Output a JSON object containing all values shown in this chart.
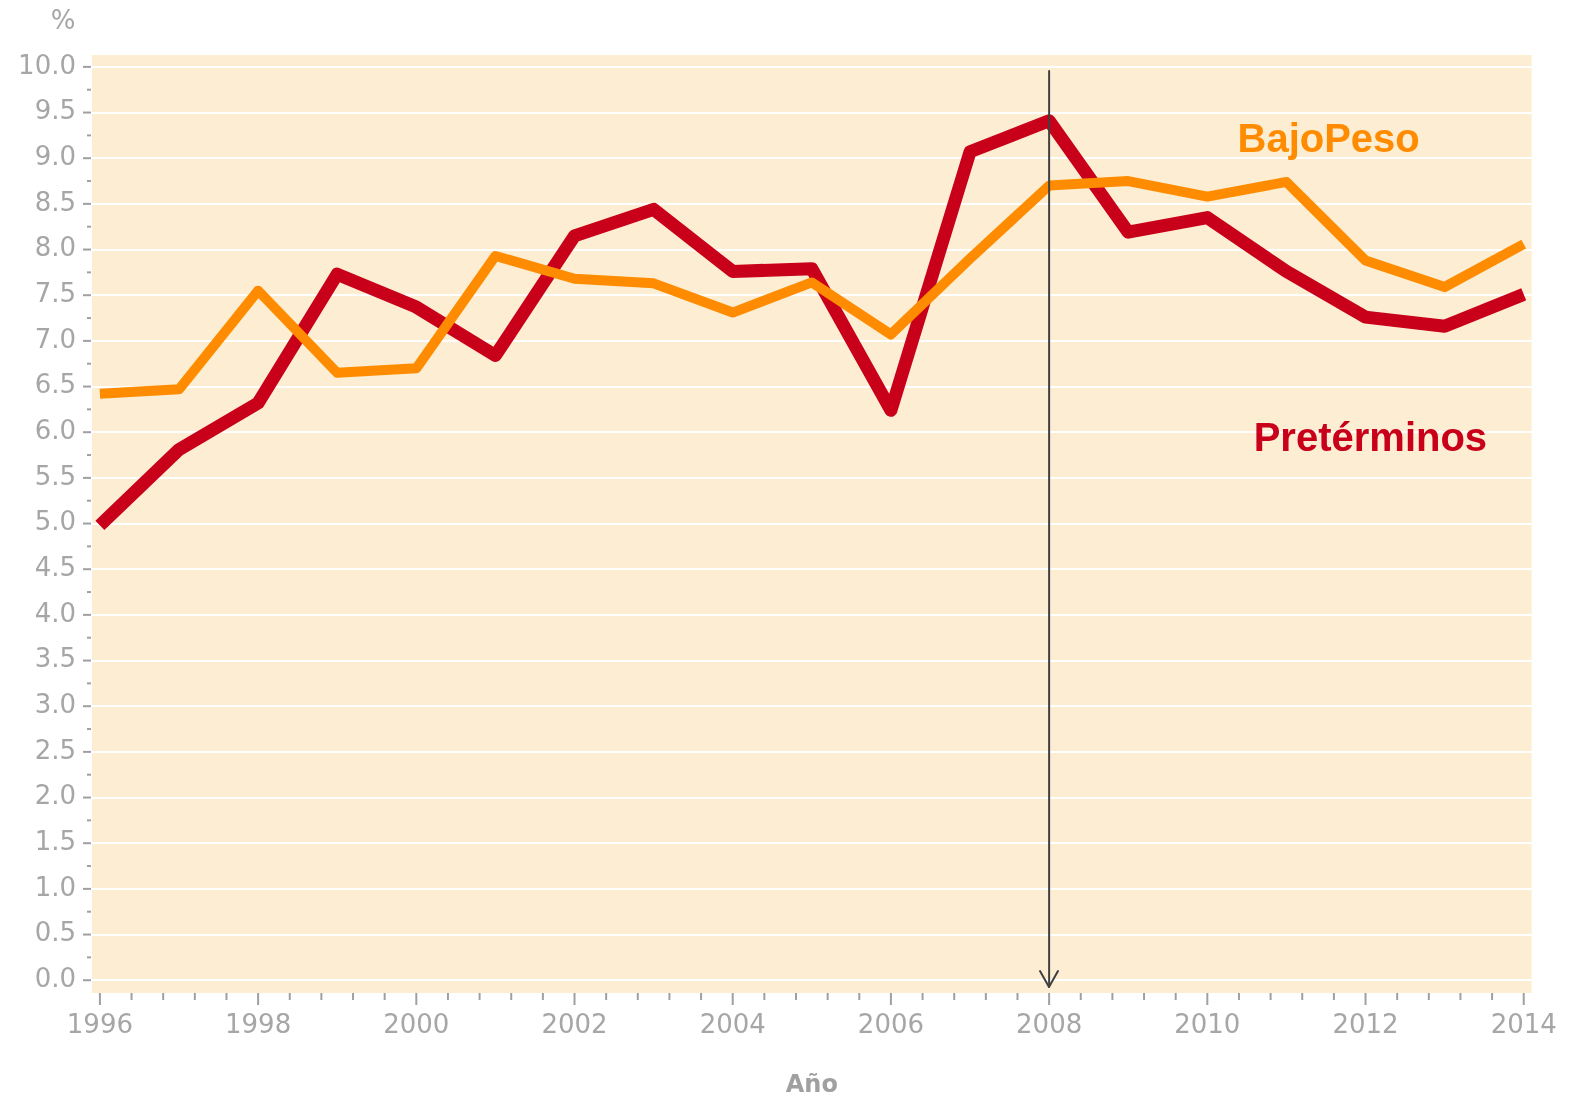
{
  "chart_data": {
    "type": "line",
    "xlabel": "Año",
    "ylabel": "%",
    "x": [
      1996,
      1997,
      1998,
      1999,
      2000,
      2001,
      2002,
      2003,
      2004,
      2005,
      2006,
      2007,
      2008,
      2009,
      2010,
      2011,
      2012,
      2013,
      2014
    ],
    "series": [
      {
        "name": "BajoPeso",
        "color": "#ff8c00",
        "values": [
          6.42,
          6.47,
          7.55,
          6.65,
          6.7,
          7.93,
          7.68,
          7.63,
          7.31,
          7.64,
          7.07,
          7.9,
          8.7,
          8.75,
          8.58,
          8.74,
          7.88,
          7.59,
          8.06
        ]
      },
      {
        "name": "Pretérminos",
        "color": "#c8001a",
        "values": [
          4.98,
          5.81,
          6.32,
          7.73,
          7.37,
          6.84,
          8.15,
          8.44,
          7.76,
          7.79,
          6.24,
          9.07,
          9.41,
          8.19,
          8.35,
          7.76,
          7.26,
          7.16,
          7.51
        ]
      }
    ],
    "xlim": [
      1995.9,
      2014.1
    ],
    "ylim": [
      -0.14,
      10.13
    ],
    "xticks": [
      1996,
      {
        "value": 1996.4,
        "label": null
      },
      {
        "value": 1996.8,
        "label": null
      },
      {
        "value": 1997.2,
        "label": null
      },
      {
        "value": 1997.6,
        "label": null
      },
      1998,
      {
        "value": 1998.4,
        "label": null
      },
      {
        "value": 1998.8,
        "label": null
      },
      {
        "value": 1999.2,
        "label": null
      },
      {
        "value": 1999.6,
        "label": null
      },
      2000,
      {
        "value": 2000.4,
        "label": null
      },
      {
        "value": 2000.8,
        "label": null
      },
      {
        "value": 2001.2,
        "label": null
      },
      {
        "value": 2001.6,
        "label": null
      },
      2002,
      {
        "value": 2002.4,
        "label": null
      },
      {
        "value": 2002.8,
        "label": null
      },
      {
        "value": 2003.2,
        "label": null
      },
      {
        "value": 2003.6,
        "label": null
      },
      2004,
      {
        "value": 2004.4,
        "label": null
      },
      {
        "value": 2004.8,
        "label": null
      },
      {
        "value": 2005.2,
        "label": null
      },
      {
        "value": 2005.6,
        "label": null
      },
      2006,
      {
        "value": 2006.4,
        "label": null
      },
      {
        "value": 2006.8,
        "label": null
      },
      {
        "value": 2007.2,
        "label": null
      },
      {
        "value": 2007.6,
        "label": null
      },
      2008,
      {
        "value": 2008.4,
        "label": null
      },
      {
        "value": 2008.8,
        "label": null
      },
      {
        "value": 2009.2,
        "label": null
      },
      {
        "value": 2009.6,
        "label": null
      },
      2010,
      {
        "value": 2010.4,
        "label": null
      },
      {
        "value": 2010.8,
        "label": null
      },
      {
        "value": 2011.2,
        "label": null
      },
      {
        "value": 2011.6,
        "label": null
      },
      2012,
      {
        "value": 2012.4,
        "label": null
      },
      {
        "value": 2012.8,
        "label": null
      },
      {
        "value": 2013.2,
        "label": null
      },
      {
        "value": 2013.6,
        "label": null
      },
      2014
    ],
    "yticks": [
      {
        "value": 0,
        "label": "0.0"
      },
      {
        "value": 0.25,
        "label": null
      },
      {
        "value": 0.5,
        "label": "0.5"
      },
      {
        "value": 0.75,
        "label": null
      },
      {
        "value": 1,
        "label": "1.0"
      },
      {
        "value": 1.25,
        "label": null
      },
      {
        "value": 1.5,
        "label": "1.5"
      },
      {
        "value": 1.75,
        "label": null
      },
      {
        "value": 2,
        "label": "2.0"
      },
      {
        "value": 2.25,
        "label": null
      },
      {
        "value": 2.5,
        "label": "2.5"
      },
      {
        "value": 2.75,
        "label": null
      },
      {
        "value": 3,
        "label": "3.0"
      },
      {
        "value": 3.25,
        "label": null
      },
      {
        "value": 3.5,
        "label": "3.5"
      },
      {
        "value": 3.75,
        "label": null
      },
      {
        "value": 4,
        "label": "4.0"
      },
      {
        "value": 4.25,
        "label": null
      },
      {
        "value": 4.5,
        "label": "4.5"
      },
      {
        "value": 4.75,
        "label": null
      },
      {
        "value": 5,
        "label": "5.0"
      },
      {
        "value": 5.25,
        "label": null
      },
      {
        "value": 5.5,
        "label": "5.5"
      },
      {
        "value": 5.75,
        "label": null
      },
      {
        "value": 6,
        "label": "6.0"
      },
      {
        "value": 6.25,
        "label": null
      },
      {
        "value": 6.5,
        "label": "6.5"
      },
      {
        "value": 6.75,
        "label": null
      },
      {
        "value": 7,
        "label": "7.0"
      },
      {
        "value": 7.25,
        "label": null
      },
      {
        "value": 7.5,
        "label": "7.5"
      },
      {
        "value": 7.75,
        "label": null
      },
      {
        "value": 8,
        "label": "8.0"
      },
      {
        "value": 8.25,
        "label": null
      },
      {
        "value": 8.5,
        "label": "8.5"
      },
      {
        "value": 8.75,
        "label": null
      },
      {
        "value": 9,
        "label": "9.0"
      },
      {
        "value": 9.25,
        "label": null
      },
      {
        "value": 9.5,
        "label": "9.5"
      },
      {
        "value": 9.75,
        "label": null
      },
      {
        "value": 10,
        "label": "10.0"
      }
    ],
    "grid": "y",
    "marker": "none",
    "ref_lines": [
      {
        "axis": "x",
        "value": 2008,
        "color": "#404040"
      }
    ]
  }
}
